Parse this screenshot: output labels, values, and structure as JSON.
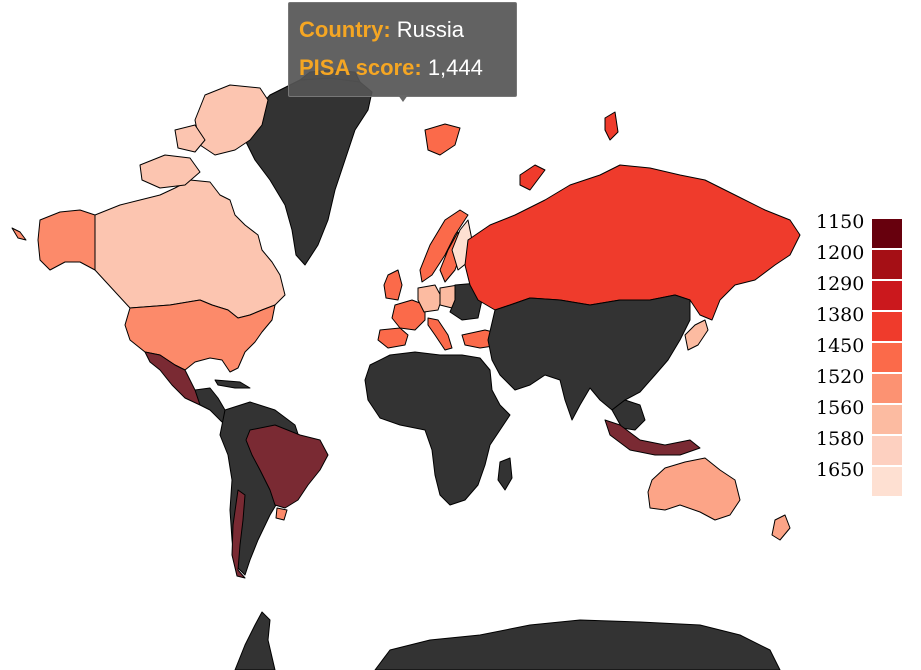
{
  "tooltip": {
    "country_key": "Country:",
    "country_value": "Russia",
    "score_key": "PISA score:",
    "score_value": "1,444"
  },
  "legend": {
    "items": [
      {
        "label": "1150",
        "color": "#67000d"
      },
      {
        "label": "1200",
        "color": "#a50f15"
      },
      {
        "label": "1290",
        "color": "#cb181d"
      },
      {
        "label": "1380",
        "color": "#ef3b2c"
      },
      {
        "label": "1450",
        "color": "#fb6a4a"
      },
      {
        "label": "1520",
        "color": "#fc9272"
      },
      {
        "label": "1560",
        "color": "#fcbba1"
      },
      {
        "label": "1580",
        "color": "#fdd0c0"
      },
      {
        "label": "1650",
        "color": "#fee0d2"
      }
    ]
  },
  "colors": {
    "no_data": "#333333",
    "russia": "#ef3b2c",
    "canada": "#fcc5b0",
    "usa": "#fc8a6a",
    "mexico": "#7a2a33",
    "brazil": "#7a2a33",
    "australia": "#fca487",
    "nz": "#fca487"
  }
}
